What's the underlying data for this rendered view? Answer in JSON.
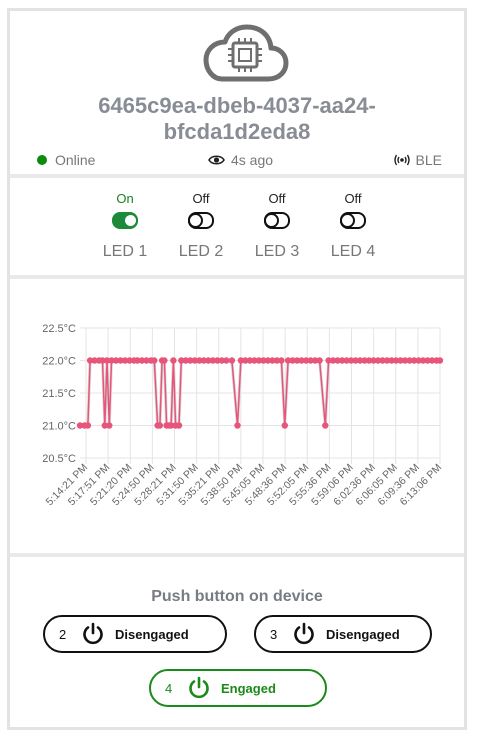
{
  "device": {
    "id_line1": "6465c9ea-dbeb-4037-aa24-",
    "id_line2": "bfcda1d2eda8",
    "status": "Online",
    "last_seen": "4s ago",
    "connection": "BLE",
    "icons": [
      "cloud-chip-icon",
      "eye-icon",
      "ble-icon"
    ]
  },
  "leds": [
    {
      "label": "LED 1",
      "state": "On"
    },
    {
      "label": "LED 2",
      "state": "Off"
    },
    {
      "label": "LED 3",
      "state": "Off"
    },
    {
      "label": "LED 4",
      "state": "Off"
    }
  ],
  "colors": {
    "accent": "#1a8a1a",
    "online": "#0b8a0b",
    "series": "#e8557a",
    "text_muted": "#888c94"
  },
  "chart_data": {
    "type": "line",
    "title": "",
    "xlabel": "",
    "ylabel": "",
    "y_ticks": [
      "22.5°C",
      "22.0°C",
      "21.5°C",
      "21.0°C",
      "20.5°C"
    ],
    "ylim": [
      20.5,
      22.5
    ],
    "x_ticks": [
      "5:14:21 PM",
      "5:17:51 PM",
      "5:21:20 PM",
      "5:24:50 PM",
      "5:28:21 PM",
      "5:31:50 PM",
      "5:35:21 PM",
      "5:38:50 PM",
      "5:45:05 PM",
      "5:48:36 PM",
      "5:52:05 PM",
      "5:55:36 PM",
      "5:59:06 PM",
      "6:02:36 PM",
      "6:06:05 PM",
      "6:09:36 PM",
      "6:13:06 PM"
    ],
    "grid": true,
    "series": [
      {
        "points": [
          [
            0.0,
            21.0
          ],
          [
            0.4,
            21.0
          ],
          [
            0.7,
            21.0
          ],
          [
            0.9,
            22.0
          ],
          [
            1.3,
            22.0
          ],
          [
            1.7,
            22.0
          ],
          [
            2.0,
            22.0
          ],
          [
            2.2,
            21.0
          ],
          [
            2.4,
            22.0
          ],
          [
            2.6,
            21.0
          ],
          [
            2.8,
            22.0
          ],
          [
            3.2,
            22.0
          ],
          [
            3.6,
            22.0
          ],
          [
            4.0,
            22.0
          ],
          [
            4.4,
            22.0
          ],
          [
            4.8,
            22.0
          ],
          [
            5.1,
            22.0
          ],
          [
            5.5,
            22.0
          ],
          [
            5.9,
            22.0
          ],
          [
            6.3,
            22.0
          ],
          [
            6.6,
            22.0
          ],
          [
            6.9,
            21.0
          ],
          [
            7.1,
            21.0
          ],
          [
            7.3,
            22.0
          ],
          [
            7.5,
            22.0
          ],
          [
            7.7,
            21.0
          ],
          [
            7.9,
            21.0
          ],
          [
            8.1,
            21.0
          ],
          [
            8.3,
            22.0
          ],
          [
            8.5,
            21.0
          ],
          [
            8.8,
            21.0
          ],
          [
            9.0,
            22.0
          ],
          [
            9.4,
            22.0
          ],
          [
            9.8,
            22.0
          ],
          [
            10.2,
            22.0
          ],
          [
            10.6,
            22.0
          ],
          [
            11.0,
            22.0
          ],
          [
            11.4,
            22.0
          ],
          [
            11.8,
            22.0
          ],
          [
            12.2,
            22.0
          ],
          [
            12.6,
            22.0
          ],
          [
            13.0,
            22.0
          ],
          [
            13.5,
            22.0
          ],
          [
            14.0,
            21.0
          ],
          [
            14.3,
            22.0
          ],
          [
            14.7,
            22.0
          ],
          [
            15.1,
            22.0
          ],
          [
            15.5,
            22.0
          ],
          [
            15.9,
            22.0
          ],
          [
            16.3,
            22.0
          ],
          [
            16.7,
            22.0
          ],
          [
            17.1,
            22.0
          ],
          [
            17.5,
            22.0
          ],
          [
            17.9,
            22.0
          ],
          [
            18.2,
            21.0
          ],
          [
            18.5,
            22.0
          ],
          [
            18.9,
            22.0
          ],
          [
            19.3,
            22.0
          ],
          [
            19.7,
            22.0
          ],
          [
            20.1,
            22.0
          ],
          [
            20.5,
            22.0
          ],
          [
            20.9,
            22.0
          ],
          [
            21.3,
            22.0
          ],
          [
            21.8,
            21.0
          ],
          [
            22.1,
            22.0
          ],
          [
            22.5,
            22.0
          ],
          [
            22.9,
            22.0
          ],
          [
            23.3,
            22.0
          ],
          [
            23.7,
            22.0
          ],
          [
            24.1,
            22.0
          ],
          [
            24.5,
            22.0
          ],
          [
            24.9,
            22.0
          ],
          [
            25.3,
            22.0
          ],
          [
            25.7,
            22.0
          ],
          [
            26.1,
            22.0
          ],
          [
            26.5,
            22.0
          ],
          [
            26.9,
            22.0
          ],
          [
            27.3,
            22.0
          ],
          [
            27.7,
            22.0
          ],
          [
            28.1,
            22.0
          ],
          [
            28.5,
            22.0
          ],
          [
            28.9,
            22.0
          ],
          [
            29.3,
            22.0
          ],
          [
            29.7,
            22.0
          ],
          [
            30.1,
            22.0
          ],
          [
            30.5,
            22.0
          ],
          [
            30.9,
            22.0
          ],
          [
            31.3,
            22.0
          ],
          [
            31.7,
            22.0
          ],
          [
            32.0,
            22.0
          ]
        ]
      }
    ]
  },
  "push": {
    "title": "Push button on device",
    "buttons": [
      {
        "num": "2",
        "state": "Disengaged"
      },
      {
        "num": "3",
        "state": "Disengaged"
      },
      {
        "num": "4",
        "state": "Engaged"
      }
    ]
  }
}
